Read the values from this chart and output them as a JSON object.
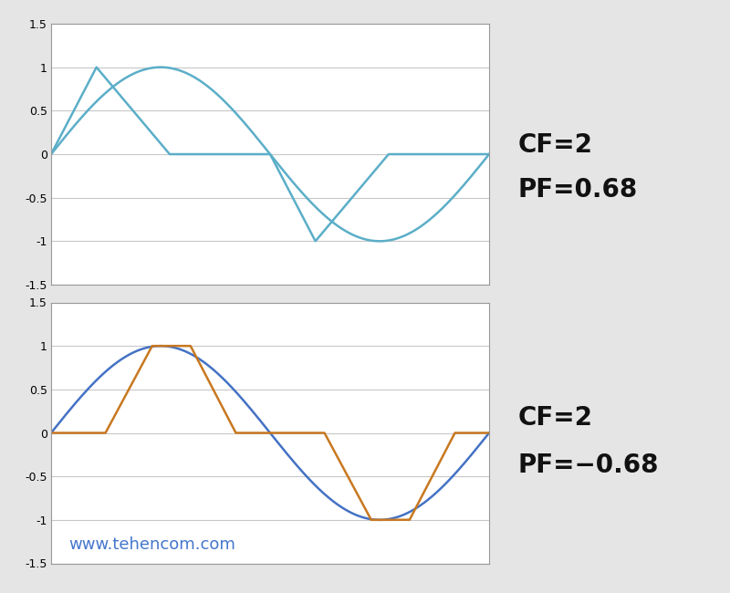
{
  "background_color": "#e5e5e5",
  "plot_bg_color": "#ffffff",
  "grid_color": "#c8c8c8",
  "ylim": [
    -1.5,
    1.5
  ],
  "yticks": [
    -1.5,
    -1.0,
    -0.5,
    0.0,
    0.5,
    1.0,
    1.5
  ],
  "ytick_labels": [
    "-1.5",
    "-1",
    "-0.5",
    "0",
    "0.5",
    "1",
    "1.5"
  ],
  "top_label1": "CF=2",
  "top_label2": "PF=0.68",
  "bot_label1": "CF=2",
  "bot_label2": "PF=−0.68",
  "label_fontsize": 20,
  "label_color": "#111111",
  "watermark": "www.tehencom.com",
  "watermark_color": "#4477cc",
  "watermark_fontsize": 13,
  "sine_color_top": "#5baec8",
  "current_color_top": "#5baec8",
  "sine_color_bot": "#4472c4",
  "current_color_bot": "#c87820",
  "line_width": 1.8,
  "border_color": "#999999",
  "tick_fontsize": 9
}
